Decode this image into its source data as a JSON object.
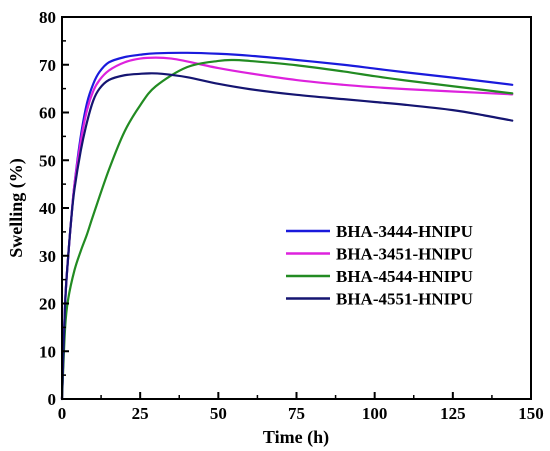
{
  "chart_data": {
    "type": "line",
    "title": "",
    "xlabel": "Time (h)",
    "ylabel": "Swelling (%)",
    "xlim": [
      0,
      150
    ],
    "ylim": [
      0,
      80
    ],
    "xticks": [
      0,
      25,
      50,
      75,
      100,
      125,
      150
    ],
    "yticks": [
      0,
      10,
      20,
      30,
      40,
      50,
      60,
      70,
      80
    ],
    "grid": false,
    "legend_position": "center-right",
    "series": [
      {
        "name": "BHA-3444-HNIPU",
        "color": "#1a1adc",
        "x": [
          0,
          1,
          2,
          3,
          4,
          6,
          8,
          10,
          12,
          15,
          20,
          25,
          30,
          40,
          50,
          60,
          75,
          90,
          100,
          110,
          125,
          144
        ],
        "y": [
          0,
          20,
          30,
          38,
          45,
          55,
          62,
          66,
          68.5,
          70.5,
          71.6,
          72.1,
          72.4,
          72.5,
          72.3,
          71.9,
          71.0,
          70.0,
          69.2,
          68.4,
          67.3,
          65.8
        ]
      },
      {
        "name": "BHA-3451-HNIPU",
        "color": "#dd22dd",
        "x": [
          0,
          1,
          2,
          3,
          4,
          6,
          8,
          10,
          12,
          15,
          20,
          25,
          30,
          35,
          40,
          50,
          60,
          75,
          90,
          100,
          110,
          125,
          144
        ],
        "y": [
          0,
          20,
          30,
          38,
          45,
          54,
          60.5,
          64.5,
          66.8,
          68.8,
          70.5,
          71.3,
          71.5,
          71.3,
          70.7,
          69.3,
          68.2,
          66.8,
          65.8,
          65.3,
          64.9,
          64.4,
          63.8
        ]
      },
      {
        "name": "BHA-4544-HNIPU",
        "color": "#228b22",
        "x": [
          0,
          1,
          2,
          4,
          6,
          8,
          10,
          15,
          20,
          25,
          30,
          40,
          50,
          55,
          60,
          75,
          90,
          100,
          110,
          125,
          144
        ],
        "y": [
          0,
          15,
          21,
          27,
          31,
          34.5,
          38.5,
          48,
          56,
          61.5,
          65.5,
          69.5,
          70.8,
          71.0,
          70.8,
          69.9,
          68.6,
          67.6,
          66.7,
          65.5,
          64.0
        ]
      },
      {
        "name": "BHA-4551-HNIPU",
        "color": "#151571",
        "x": [
          0,
          1,
          2,
          3,
          4,
          6,
          8,
          10,
          12,
          15,
          20,
          25,
          28,
          32,
          40,
          50,
          60,
          75,
          90,
          100,
          110,
          125,
          135,
          144
        ],
        "y": [
          0,
          20,
          30,
          38,
          44,
          52,
          58,
          62.5,
          65,
          66.8,
          67.8,
          68.1,
          68.2,
          68.1,
          67.4,
          66.0,
          64.9,
          63.7,
          62.8,
          62.2,
          61.6,
          60.5,
          59.4,
          58.3
        ]
      }
    ]
  }
}
